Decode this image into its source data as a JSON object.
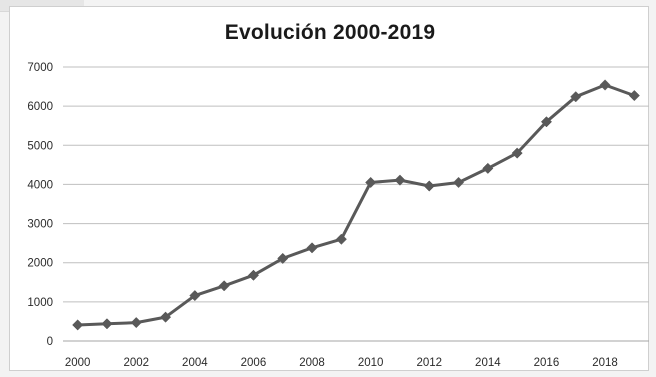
{
  "chart_data": {
    "type": "line",
    "title": "Evolución 2000-2019",
    "xlabel": "",
    "ylabel": "",
    "x": [
      2000,
      2001,
      2002,
      2003,
      2004,
      2005,
      2006,
      2007,
      2008,
      2009,
      2010,
      2011,
      2012,
      2013,
      2014,
      2015,
      2016,
      2017,
      2018,
      2019
    ],
    "series": [
      {
        "values": [
          410,
          440,
          470,
          610,
          1160,
          1410,
          1680,
          2110,
          2380,
          2600,
          4050,
          4110,
          3960,
          4050,
          4410,
          4800,
          5600,
          6240,
          6540,
          6270
        ],
        "color": "#595959",
        "marker": "diamond"
      }
    ],
    "xticks": [
      "2000",
      "2002",
      "2004",
      "2006",
      "2008",
      "2010",
      "2012",
      "2014",
      "2016",
      "2018"
    ],
    "yticks": [
      "0",
      "1000",
      "2000",
      "3000",
      "4000",
      "5000",
      "6000",
      "7000"
    ],
    "xlim": [
      2000,
      2019
    ],
    "ylim": [
      0,
      7000
    ],
    "grid": "horizontal",
    "legend": "none"
  }
}
